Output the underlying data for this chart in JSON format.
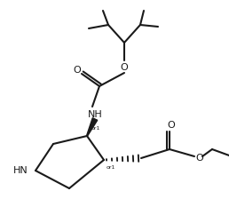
{
  "bg": "#ffffff",
  "lc": "#1a1a1a",
  "lw": 1.5,
  "fs": 7.0,
  "fig_w": 2.58,
  "fig_h": 2.42,
  "dpi": 100,
  "xlim": [
    0,
    258
  ],
  "ylim": [
    242,
    0
  ]
}
